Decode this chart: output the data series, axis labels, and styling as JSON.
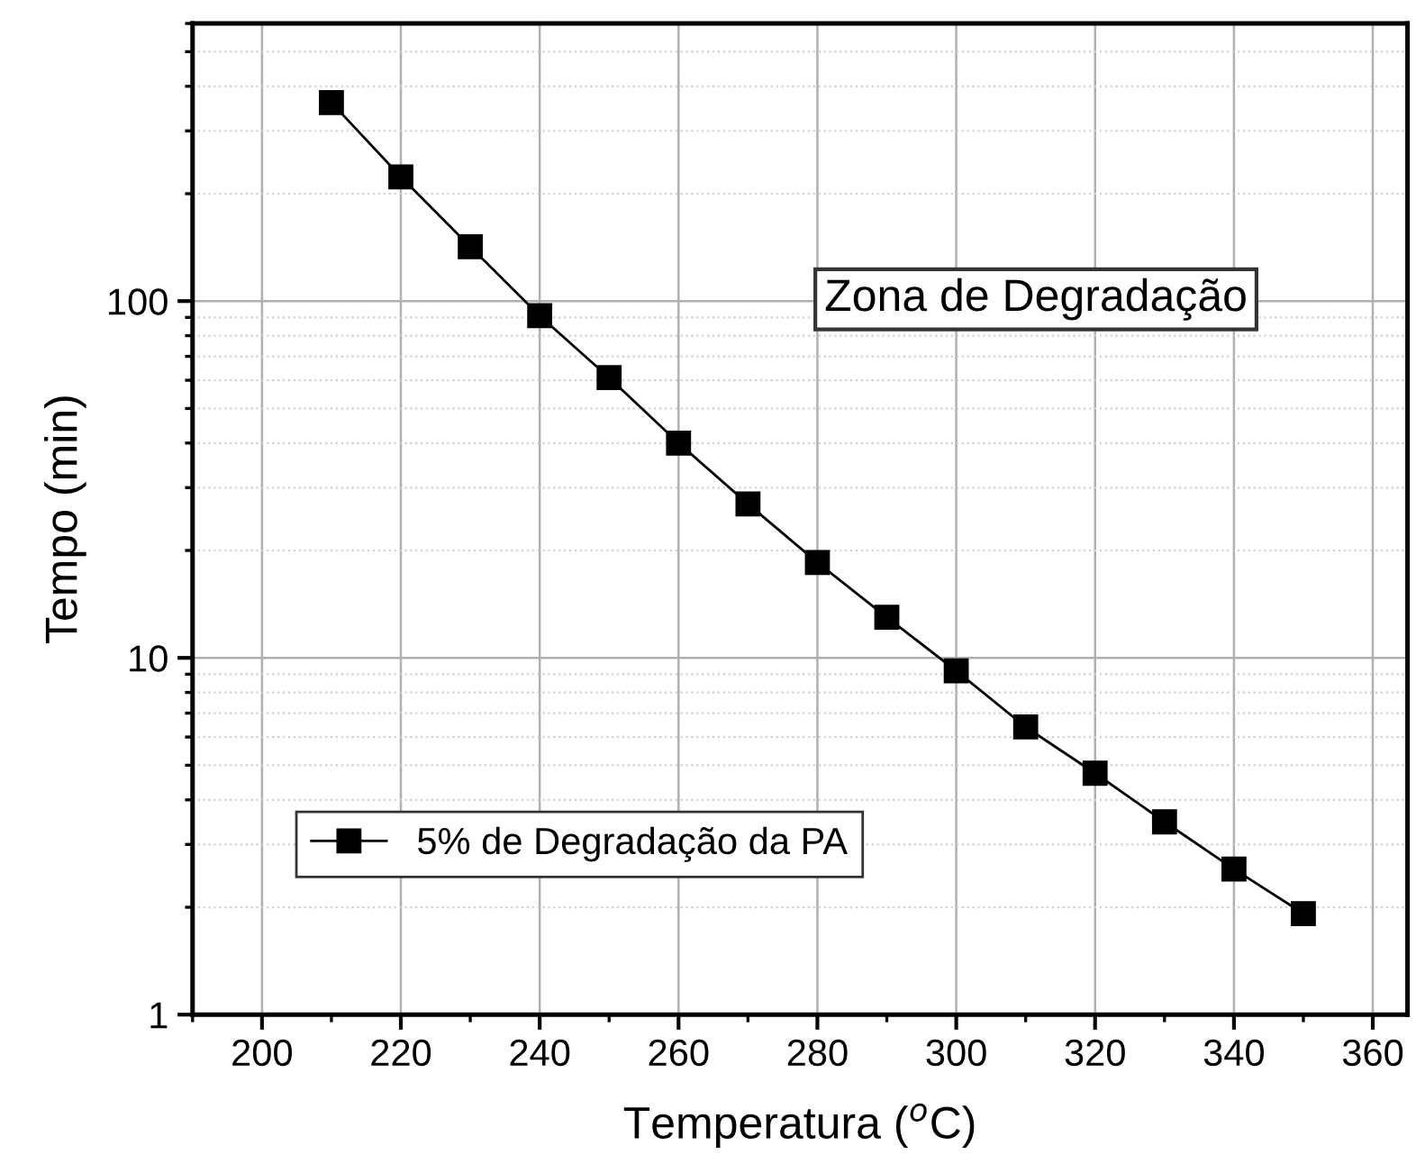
{
  "chart_data": {
    "type": "line",
    "xlabel": "Temperatura ($^{o}$C)",
    "ylabel": "Tempo (min)",
    "x": [
      210,
      220,
      230,
      240,
      250,
      260,
      270,
      280,
      290,
      300,
      310,
      320,
      330,
      340,
      350
    ],
    "series": [
      {
        "name": "5% de Degradação da PA",
        "color": "#000000",
        "values": [
          360,
          223,
          142,
          91,
          61,
          40,
          27,
          18.5,
          13,
          9.2,
          6.4,
          4.75,
          3.47,
          2.56,
          1.92
        ]
      }
    ],
    "xlim": [
      190,
      365
    ],
    "xticks": [
      200,
      220,
      240,
      260,
      280,
      300,
      320,
      340,
      360
    ],
    "ylim": [
      1,
      600
    ],
    "yticks": [
      1,
      10,
      100
    ],
    "log": "y",
    "grid": true,
    "legend": "bottom left",
    "marker": "square",
    "line_style": "solid",
    "annotations": [
      "Zona de Degradação"
    ]
  }
}
